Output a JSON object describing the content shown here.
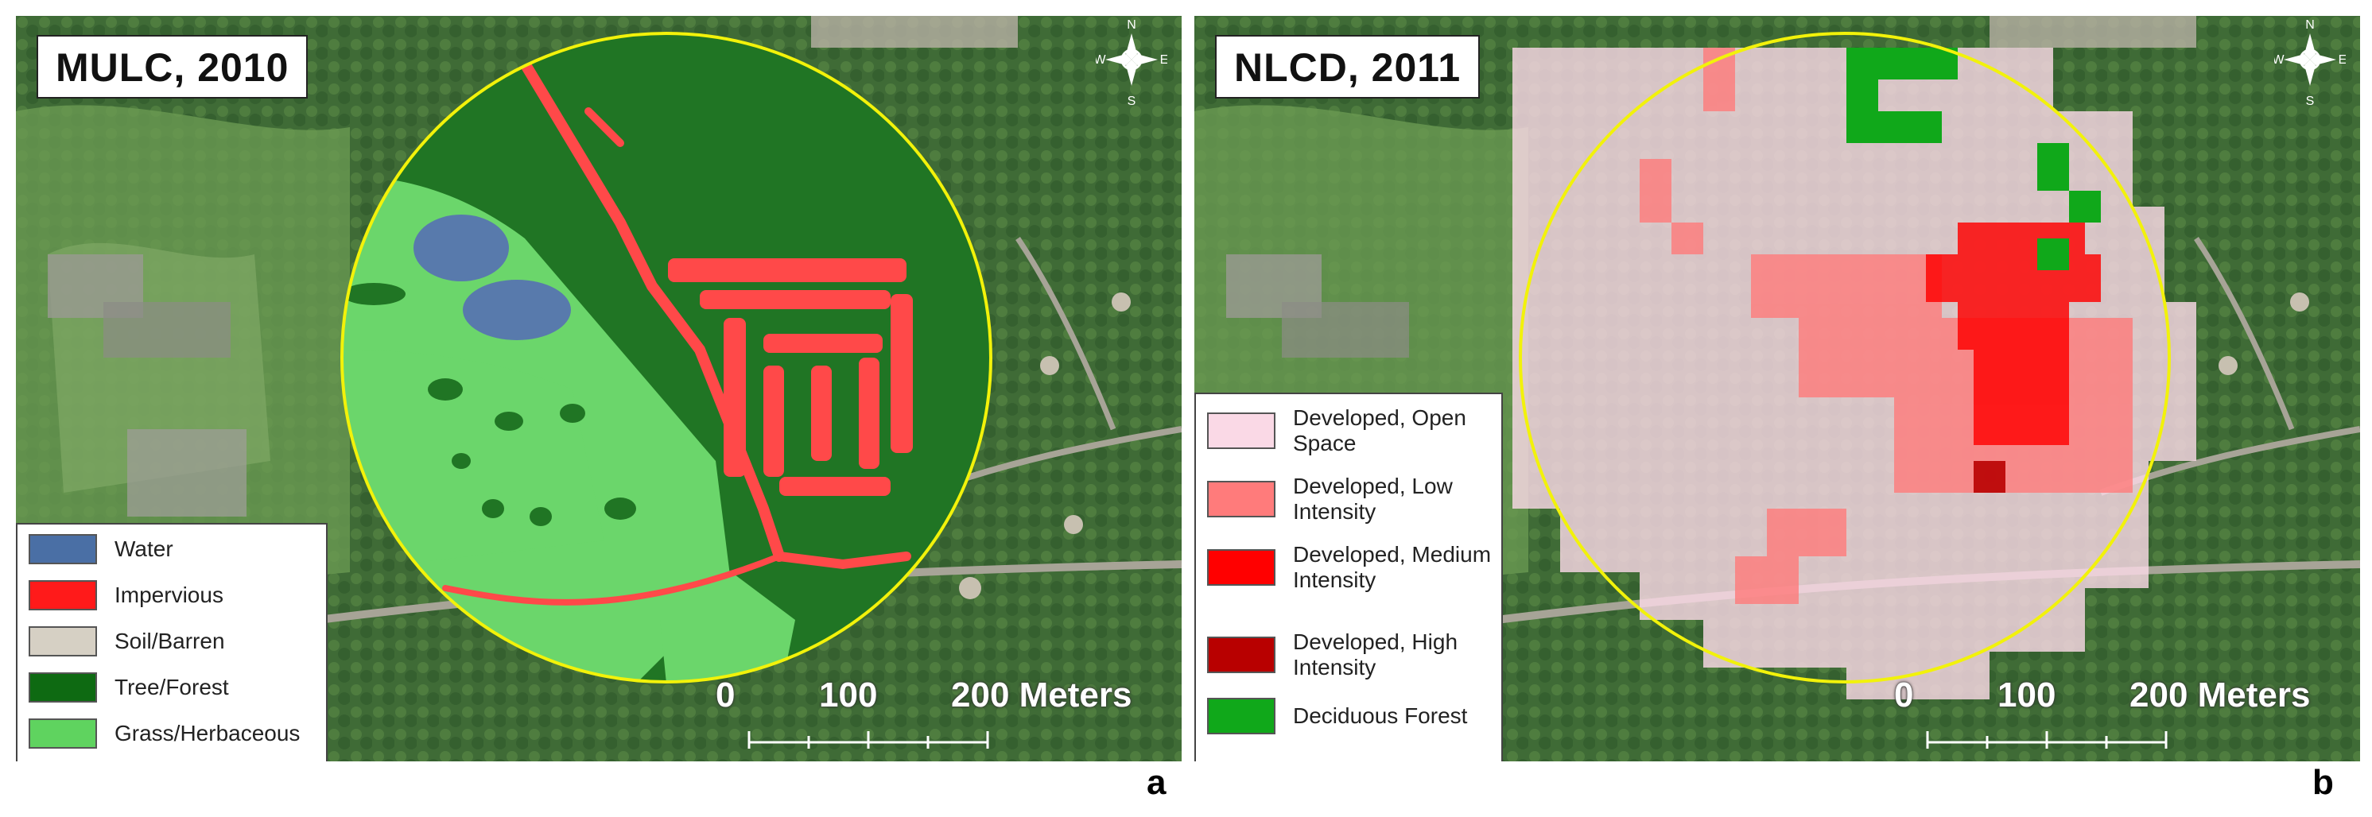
{
  "panels": [
    {
      "title": "MULC, 2010",
      "panel_letter": "a",
      "legend": [
        {
          "label": "Water",
          "color": "#4a6fa5"
        },
        {
          "label": "Impervious",
          "color": "#ff1a1a"
        },
        {
          "label": "Soil/Barren",
          "color": "#d6d0c4"
        },
        {
          "label": "Tree/Forest",
          "color": "#0e6a12"
        },
        {
          "label": "Grass/Herbaceous",
          "color": "#5fd35f"
        }
      ],
      "scale": {
        "labels": [
          "0",
          "100",
          "200 Meters"
        ]
      },
      "compass": {
        "n": "N",
        "s": "S",
        "e": "E",
        "w": "W"
      }
    },
    {
      "title": "NLCD, 2011",
      "panel_letter": "b",
      "legend": [
        {
          "label": "Developed, Open Space",
          "color": "#fad9e6"
        },
        {
          "label": "Developed, Low Intensity",
          "color": "#ff7b7b"
        },
        {
          "label": "Developed, Medium Intensity",
          "color": "#ff0000"
        },
        {
          "label": "Developed, High Intensity",
          "color": "#b80000"
        },
        {
          "label": "Deciduous Forest",
          "color": "#10a81a"
        }
      ],
      "scale": {
        "labels": [
          "0",
          "100",
          "200 Meters"
        ]
      },
      "compass": {
        "n": "N",
        "s": "S",
        "e": "E",
        "w": "W"
      }
    }
  ],
  "colors": {
    "imagery_green": "#4c7a3e",
    "imagery_dark": "#2f5a2c",
    "circle": "#f2f20a"
  }
}
